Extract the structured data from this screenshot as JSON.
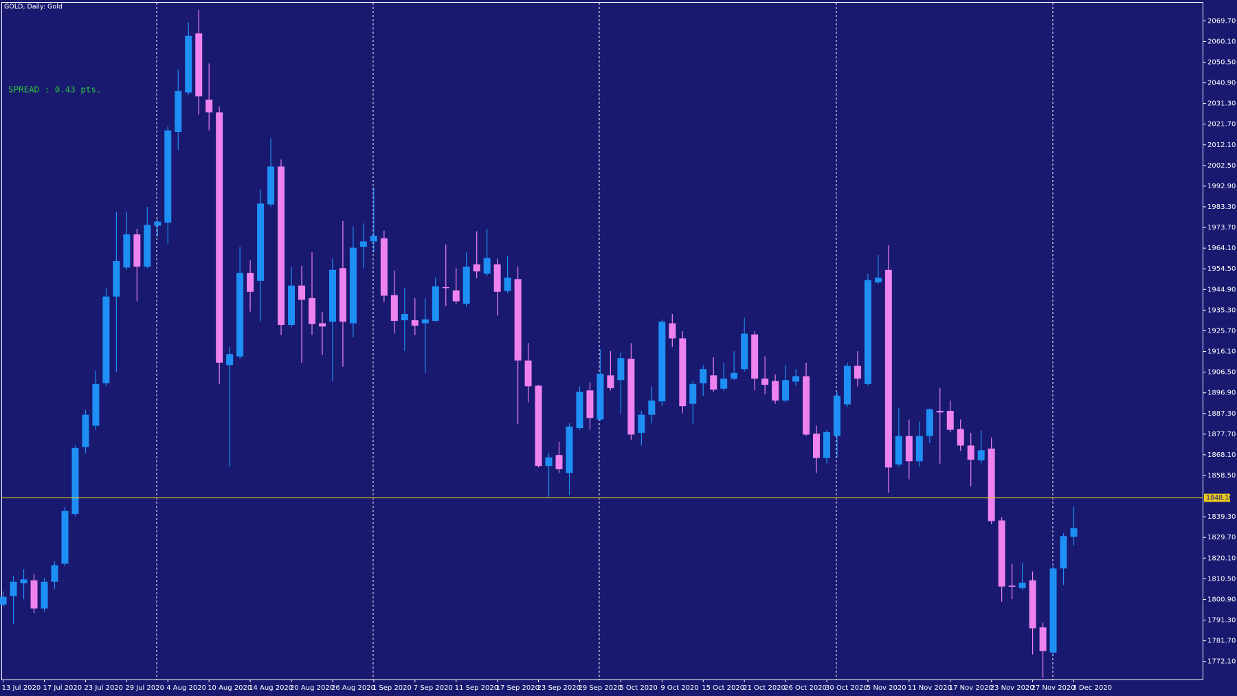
{
  "chart_data": {
    "type": "candlestick",
    "title": "GOLD, Daily: Gold",
    "annotation": "SPREAD : 0.43 pts.",
    "up_color": "#1e8ff5",
    "down_color": "#ee82ee",
    "grid": false,
    "categories": [
      "13 Jul 2020",
      null,
      null,
      null,
      "17 Jul 2020",
      null,
      null,
      null,
      "23 Jul 2020",
      null,
      null,
      null,
      "29 Jul 2020",
      null,
      null,
      null,
      "4 Aug 2020",
      null,
      null,
      null,
      "10 Aug 2020",
      null,
      null,
      null,
      "14 Aug 2020",
      null,
      null,
      null,
      "20 Aug 2020",
      null,
      null,
      null,
      "26 Aug 2020",
      null,
      null,
      null,
      "1 Sep 2020",
      null,
      null,
      null,
      "7 Sep 2020",
      null,
      null,
      null,
      "11 Sep 2020",
      null,
      null,
      null,
      "17 Sep 2020",
      null,
      null,
      null,
      "23 Sep 2020",
      null,
      null,
      null,
      "29 Sep 2020",
      null,
      null,
      null,
      "5 Oct 2020",
      null,
      null,
      null,
      "9 Oct 2020",
      null,
      null,
      null,
      "15 Oct 2020",
      null,
      null,
      null,
      "21 Oct 2020",
      null,
      null,
      null,
      "26 Oct 2020",
      null,
      null,
      null,
      "30 Oct 2020",
      null,
      null,
      null,
      "5 Nov 2020",
      null,
      null,
      null,
      "11 Nov 2020",
      null,
      null,
      null,
      "17 Nov 2020",
      null,
      null,
      null,
      "23 Nov 2020",
      null,
      null,
      null,
      "27 Nov 2020",
      null,
      null,
      null,
      "3 Dec 2020"
    ],
    "open": [
      1798.5,
      1802.5,
      1808.4,
      1809.8,
      1796.7,
      1809.1,
      1817.5,
      1840.6,
      1871.7,
      1881.6,
      1901.3,
      1941.6,
      1955.1,
      1970.5,
      1955.5,
      1974.5,
      1976.0,
      2018.1,
      2036.4,
      2063.9,
      2033.1,
      2027.2,
      1909.8,
      1913.8,
      1952.6,
      1948.9,
      1984.4,
      2002.0,
      1928.4,
      1946.7,
      1940.9,
      1929.2,
      1929.9,
      1954.8,
      1929.2,
      1964.7,
      1967.2,
      1968.7,
      1942.3,
      1930.6,
      1930.6,
      1929.2,
      1930.3,
      1946.0,
      1944.5,
      1938.3,
      1956.6,
      1952.2,
      1956.6,
      1944.2,
      1949.7,
      1911.9,
      1900.2,
      1862.9,
      1868.0,
      1859.6,
      1880.5,
      1898.0,
      1884.5,
      1905.0,
      1902.8,
      1912.7,
      1878.3,
      1886.7,
      1892.9,
      1929.2,
      1922.2,
      1891.8,
      1901.3,
      1905.0,
      1898.8,
      1903.5,
      1907.9,
      1924.0,
      1903.5,
      1902.4,
      1893.3,
      1902.1,
      1904.6,
      1877.9,
      1866.6,
      1876.8,
      1891.5,
      1909.4,
      1901.0,
      1948.2,
      1954.0,
      1863.6,
      1876.8,
      1865.1,
      1876.8,
      1888.5,
      1888.5,
      1880.1,
      1872.4,
      1865.5,
      1871.0,
      1837.6,
      1807.3,
      1806.2,
      1809.8,
      1787.9,
      1776.2,
      1815.3,
      1830.0
    ],
    "high": [
      1804.7,
      1812.0,
      1815.0,
      1812.8,
      1810.9,
      1818.6,
      1843.9,
      1872.4,
      1888.9,
      1907.2,
      1945.6,
      1981.1,
      1981.1,
      1973.1,
      1983.3,
      1977.5,
      2020.7,
      2047.0,
      2069.0,
      2074.8,
      2049.9,
      2029.8,
      1918.2,
      1964.7,
      1958.4,
      1991.4,
      2015.2,
      2005.3,
      1955.5,
      1955.9,
      1962.1,
      1934.6,
      1959.5,
      1976.7,
      1974.2,
      1975.6,
      1992.5,
      1972.3,
      1953.7,
      1945.6,
      1940.9,
      1940.9,
      1950.4,
      1965.8,
      1954.8,
      1962.1,
      1972.0,
      1973.1,
      1959.2,
      1960.3,
      1955.5,
      1920.0,
      1900.6,
      1868.8,
      1874.2,
      1882.7,
      1899.9,
      1901.7,
      1917.1,
      1916.3,
      1915.6,
      1920.0,
      1888.5,
      1899.9,
      1931.0,
      1933.5,
      1925.5,
      1902.4,
      1909.8,
      1913.4,
      1910.9,
      1916.3,
      1931.7,
      1925.5,
      1913.8,
      1905.4,
      1909.8,
      1907.9,
      1910.9,
      1881.6,
      1879.7,
      1897.3,
      1910.9,
      1916.3,
      1952.2,
      1961.0,
      1965.4,
      1890.0,
      1884.5,
      1883.4,
      1889.6,
      1899.1,
      1893.3,
      1884.5,
      1878.3,
      1879.4,
      1876.1,
      1839.1,
      1817.5,
      1817.9,
      1813.9,
      1790.1,
      1816.4,
      1831.8,
      1844.2
    ],
    "low": [
      1797.4,
      1789.3,
      1801.0,
      1794.5,
      1795.2,
      1805.8,
      1816.4,
      1839.5,
      1868.8,
      1879.7,
      1899.9,
      1906.5,
      1954.0,
      1939.4,
      1954.8,
      1969.4,
      1965.8,
      2009.7,
      2035.3,
      2026.2,
      2018.8,
      1901.0,
      1862.5,
      1912.7,
      1934.6,
      1929.9,
      1983.3,
      1923.7,
      1927.3,
      1910.9,
      1923.7,
      1914.5,
      1902.4,
      1909.0,
      1922.6,
      1954.8,
      1962.1,
      1939.0,
      1924.4,
      1916.3,
      1923.7,
      1906.1,
      1929.9,
      1937.2,
      1938.3,
      1936.8,
      1950.0,
      1951.1,
      1932.8,
      1943.1,
      1882.3,
      1892.5,
      1862.2,
      1848.6,
      1859.6,
      1849.4,
      1879.7,
      1879.7,
      1883.8,
      1898.0,
      1887.1,
      1875.0,
      1872.4,
      1882.7,
      1890.7,
      1918.2,
      1887.4,
      1882.3,
      1895.5,
      1897.3,
      1897.7,
      1902.8,
      1906.8,
      1898.0,
      1896.2,
      1891.8,
      1892.5,
      1900.2,
      1876.8,
      1859.6,
      1864.0,
      1866.9,
      1890.4,
      1899.9,
      1900.2,
      1947.5,
      1850.5,
      1862.5,
      1856.7,
      1862.5,
      1873.5,
      1864.0,
      1878.6,
      1869.9,
      1853.4,
      1864.0,
      1835.8,
      1799.9,
      1801.0,
      1805.4,
      1775.4,
      1764.4,
      1774.7,
      1807.6,
      1825.9
    ],
    "close": [
      1802.1,
      1809.1,
      1810.2,
      1796.7,
      1809.1,
      1816.8,
      1842.0,
      1871.3,
      1886.7,
      1901.0,
      1941.6,
      1958.1,
      1970.5,
      1955.5,
      1974.9,
      1976.4,
      2018.8,
      2037.1,
      2062.8,
      2034.6,
      2027.2,
      1910.9,
      1914.9,
      1952.6,
      1943.8,
      1984.8,
      2002.0,
      1928.4,
      1946.7,
      1940.1,
      1928.8,
      1927.7,
      1954.0,
      1929.9,
      1964.3,
      1967.2,
      1969.8,
      1942.0,
      1930.3,
      1933.5,
      1928.1,
      1931.0,
      1946.4,
      1945.6,
      1939.4,
      1955.5,
      1953.3,
      1959.5,
      1943.8,
      1950.4,
      1911.9,
      1899.9,
      1862.9,
      1866.9,
      1861.4,
      1881.2,
      1897.3,
      1885.2,
      1905.7,
      1899.1,
      1913.0,
      1877.5,
      1886.7,
      1893.3,
      1929.9,
      1922.2,
      1890.7,
      1901.0,
      1907.9,
      1898.4,
      1903.5,
      1906.1,
      1924.4,
      1903.5,
      1900.6,
      1893.3,
      1902.8,
      1904.6,
      1877.5,
      1866.6,
      1878.6,
      1895.5,
      1909.4,
      1903.5,
      1949.3,
      1950.4,
      1862.2,
      1876.8,
      1865.1,
      1876.8,
      1889.3,
      1887.8,
      1879.7,
      1872.4,
      1865.8,
      1870.2,
      1837.3,
      1806.9,
      1806.9,
      1808.7,
      1787.5,
      1776.9,
      1815.3,
      1830.3,
      1834.0
    ],
    "ylim": [
      1763.7,
      2078.1
    ],
    "yticks": [
      {
        "value": 2069.7,
        "label": "2069.70"
      },
      {
        "value": 2060.1,
        "label": "2060.10"
      },
      {
        "value": 2050.5,
        "label": "2050.50"
      },
      {
        "value": 2040.9,
        "label": "2040.90"
      },
      {
        "value": 2031.3,
        "label": "2031.30"
      },
      {
        "value": 2021.7,
        "label": "2021.70"
      },
      {
        "value": 2012.1,
        "label": "2012.10"
      },
      {
        "value": 2002.5,
        "label": "2002.50"
      },
      {
        "value": 1992.9,
        "label": "1992.90"
      },
      {
        "value": 1983.3,
        "label": "1983.30"
      },
      {
        "value": 1973.7,
        "label": "1973.70"
      },
      {
        "value": 1964.1,
        "label": "1964.10"
      },
      {
        "value": 1954.5,
        "label": "1954.50"
      },
      {
        "value": 1944.9,
        "label": "1944.90"
      },
      {
        "value": 1935.3,
        "label": "1935.30"
      },
      {
        "value": 1925.7,
        "label": "1925.70"
      },
      {
        "value": 1916.1,
        "label": "1916.10"
      },
      {
        "value": 1906.5,
        "label": "1906.50"
      },
      {
        "value": 1896.9,
        "label": "1896.90"
      },
      {
        "value": 1887.3,
        "label": "1887.30"
      },
      {
        "value": 1877.7,
        "label": "1877.70"
      },
      {
        "value": 1868.1,
        "label": "1868.10"
      },
      {
        "value": 1858.5,
        "label": "1858.50"
      },
      {
        "value": 1839.3,
        "label": "1839.30"
      },
      {
        "value": 1829.7,
        "label": "1829.70"
      },
      {
        "value": 1820.1,
        "label": "1820.10"
      },
      {
        "value": 1810.5,
        "label": "1810.50"
      },
      {
        "value": 1800.9,
        "label": "1800.90"
      },
      {
        "value": 1791.3,
        "label": "1791.30"
      },
      {
        "value": 1781.7,
        "label": "1781.70"
      },
      {
        "value": 1772.1,
        "label": "1772.10"
      }
    ],
    "bid_line": {
      "value": 1848.1,
      "label": "1848.10",
      "color": "#e8c81c"
    }
  }
}
